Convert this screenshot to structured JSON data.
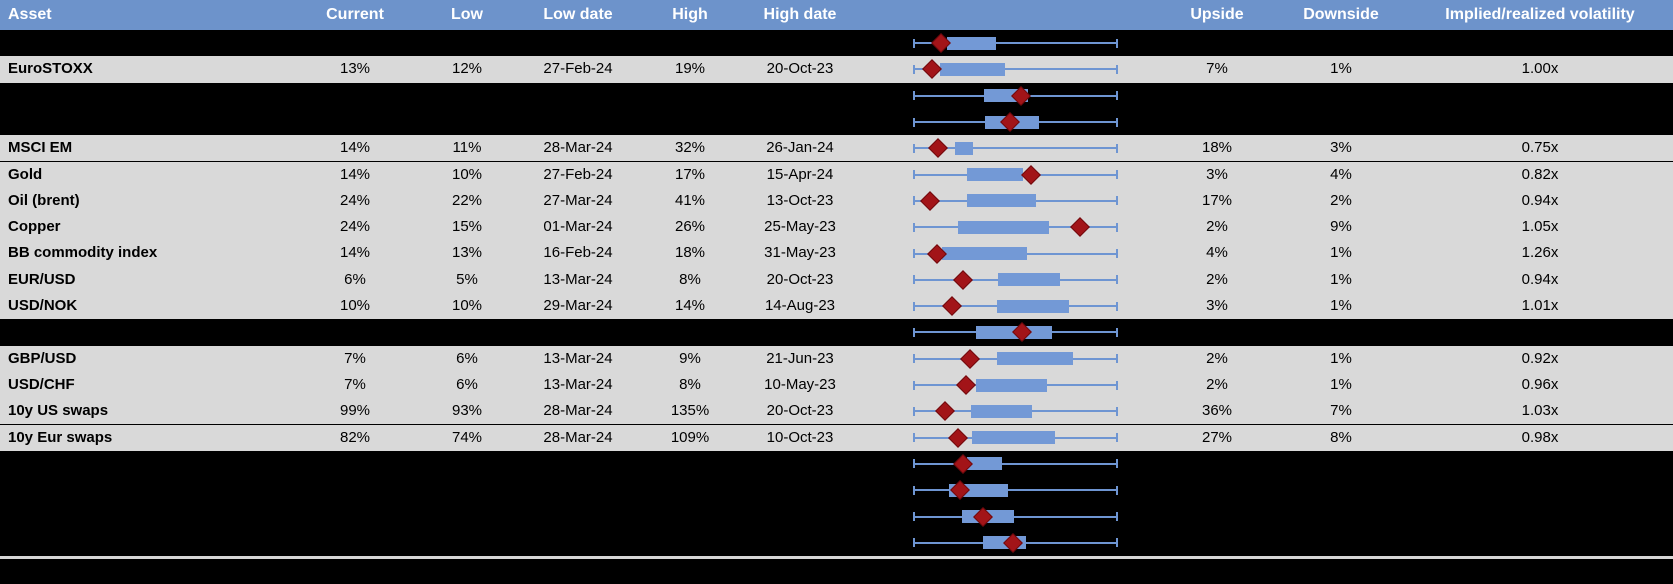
{
  "colors": {
    "header_bg": "#6d93cb",
    "header_text": "#ffffff",
    "row_dark": "#000000",
    "row_light": "#d9d9d9",
    "cell_text": "#000000",
    "box_fill": "#7399d6",
    "whisker": "#6e95d2",
    "marker_fill": "#a21418",
    "marker_border": "#70090c",
    "divider": "#d6d6d6"
  },
  "chart_data": {
    "type": "table",
    "columns": [
      {
        "key": "asset",
        "label": "Asset"
      },
      {
        "key": "current",
        "label": "Current"
      },
      {
        "key": "low",
        "label": "Low"
      },
      {
        "key": "low_date",
        "label": "Low date"
      },
      {
        "key": "high",
        "label": "High"
      },
      {
        "key": "high_date",
        "label": "High date"
      },
      {
        "key": "range_chart",
        "label": ""
      },
      {
        "key": "upside",
        "label": "Upside"
      },
      {
        "key": "downside",
        "label": "Downside"
      },
      {
        "key": "implied",
        "label": "Implied/realized volatility"
      }
    ],
    "boxplot_legend": {
      "description_box": "interquartile range of past-year volatility (normalized low-to-high)",
      "description_marker": "current level (red diamond)",
      "axis_range": [
        0,
        1
      ]
    },
    "rows": [
      {
        "kind": "dark",
        "boxplot": {
          "box": [
            0.166,
            0.405
          ],
          "marker": 0.137
        }
      },
      {
        "kind": "light",
        "asset": "EuroSTOXX",
        "current": "13%",
        "low": "12%",
        "low_date": "27-Feb-24",
        "high": "19%",
        "high_date": "20-Oct-23",
        "upside": "7%",
        "downside": "1%",
        "implied": "1.00x",
        "boxplot": {
          "box": [
            0.132,
            0.449
          ],
          "marker": 0.093
        }
      },
      {
        "kind": "dark",
        "boxplot": {
          "box": [
            0.346,
            0.561
          ],
          "marker": 0.527
        }
      },
      {
        "kind": "dark",
        "boxplot": {
          "box": [
            0.351,
            0.615
          ],
          "marker": 0.473
        }
      },
      {
        "kind": "light",
        "asset": "MSCI EM",
        "current": "14%",
        "low": "11%",
        "low_date": "28-Mar-24",
        "high": "32%",
        "high_date": "26-Jan-24",
        "upside": "18%",
        "downside": "3%",
        "implied": "0.75x",
        "boxplot": {
          "box": [
            0.205,
            0.293
          ],
          "marker": 0.122
        }
      },
      {
        "kind": "light",
        "asset": "Gold",
        "current": "14%",
        "low": "10%",
        "low_date": "27-Feb-24",
        "high": "17%",
        "high_date": "15-Apr-24",
        "upside": "3%",
        "downside": "4%",
        "implied": "0.82x",
        "boxplot": {
          "box": [
            0.263,
            0.537
          ],
          "marker": 0.576
        }
      },
      {
        "kind": "light",
        "asset": "Oil (brent)",
        "current": "24%",
        "low": "22%",
        "low_date": "27-Mar-24",
        "high": "41%",
        "high_date": "13-Oct-23",
        "upside": "17%",
        "downside": "2%",
        "implied": "0.94x",
        "boxplot": {
          "box": [
            0.263,
            0.6
          ],
          "marker": 0.083
        }
      },
      {
        "kind": "light",
        "asset": "Copper",
        "current": "24%",
        "low": "15%",
        "low_date": "01-Mar-24",
        "high": "26%",
        "high_date": "25-May-23",
        "upside": "2%",
        "downside": "9%",
        "implied": "1.05x",
        "boxplot": {
          "box": [
            0.22,
            0.663
          ],
          "marker": 0.815
        }
      },
      {
        "kind": "light",
        "asset": "BB commodity index",
        "current": "14%",
        "low": "13%",
        "low_date": "16-Feb-24",
        "high": "18%",
        "high_date": "31-May-23",
        "upside": "4%",
        "downside": "1%",
        "implied": "1.26x",
        "boxplot": {
          "box": [
            0.141,
            0.556
          ],
          "marker": 0.117
        }
      },
      {
        "kind": "light",
        "asset": "EUR/USD",
        "current": "6%",
        "low": "5%",
        "low_date": "13-Mar-24",
        "high": "8%",
        "high_date": "20-Oct-23",
        "upside": "2%",
        "downside": "1%",
        "implied": "0.94x",
        "boxplot": {
          "box": [
            0.415,
            0.717
          ],
          "marker": 0.244
        }
      },
      {
        "kind": "light",
        "asset": "USD/NOK",
        "current": "10%",
        "low": "10%",
        "low_date": "29-Mar-24",
        "high": "14%",
        "high_date": "14-Aug-23",
        "upside": "3%",
        "downside": "1%",
        "implied": "1.01x",
        "boxplot": {
          "box": [
            0.41,
            0.761
          ],
          "marker": 0.19
        }
      },
      {
        "kind": "dark",
        "boxplot": {
          "box": [
            0.307,
            0.678
          ],
          "marker": 0.532
        }
      },
      {
        "kind": "light",
        "asset": "GBP/USD",
        "current": "7%",
        "low": "6%",
        "low_date": "13-Mar-24",
        "high": "9%",
        "high_date": "21-Jun-23",
        "upside": "2%",
        "downside": "1%",
        "implied": "0.92x",
        "boxplot": {
          "box": [
            0.41,
            0.78
          ],
          "marker": 0.278
        }
      },
      {
        "kind": "light",
        "asset": "USD/CHF",
        "current": "7%",
        "low": "6%",
        "low_date": "13-Mar-24",
        "high": "8%",
        "high_date": "10-May-23",
        "upside": "2%",
        "downside": "1%",
        "implied": "0.96x",
        "boxplot": {
          "box": [
            0.307,
            0.654
          ],
          "marker": 0.259
        }
      },
      {
        "kind": "light",
        "asset": "10y US swaps",
        "current": "99%",
        "low": "93%",
        "low_date": "28-Mar-24",
        "high": "135%",
        "high_date": "20-Oct-23",
        "upside": "36%",
        "downside": "7%",
        "implied": "1.03x",
        "boxplot": {
          "box": [
            0.283,
            0.58
          ],
          "marker": 0.156
        }
      },
      {
        "kind": "light",
        "asset": "10y Eur swaps",
        "current": "82%",
        "low": "74%",
        "low_date": "28-Mar-24",
        "high": "109%",
        "high_date": "10-Oct-23",
        "upside": "27%",
        "downside": "8%",
        "implied": "0.98x",
        "boxplot": {
          "box": [
            0.288,
            0.693
          ],
          "marker": 0.22
        }
      },
      {
        "kind": "dark",
        "boxplot": {
          "box": [
            0.263,
            0.434
          ],
          "marker": 0.244
        }
      },
      {
        "kind": "dark",
        "boxplot": {
          "box": [
            0.176,
            0.463
          ],
          "marker": 0.229
        }
      },
      {
        "kind": "dark",
        "boxplot": {
          "box": [
            0.239,
            0.493
          ],
          "marker": 0.341
        }
      },
      {
        "kind": "dark",
        "boxplot": {
          "box": [
            0.341,
            0.551
          ],
          "marker": 0.488
        }
      }
    ]
  }
}
